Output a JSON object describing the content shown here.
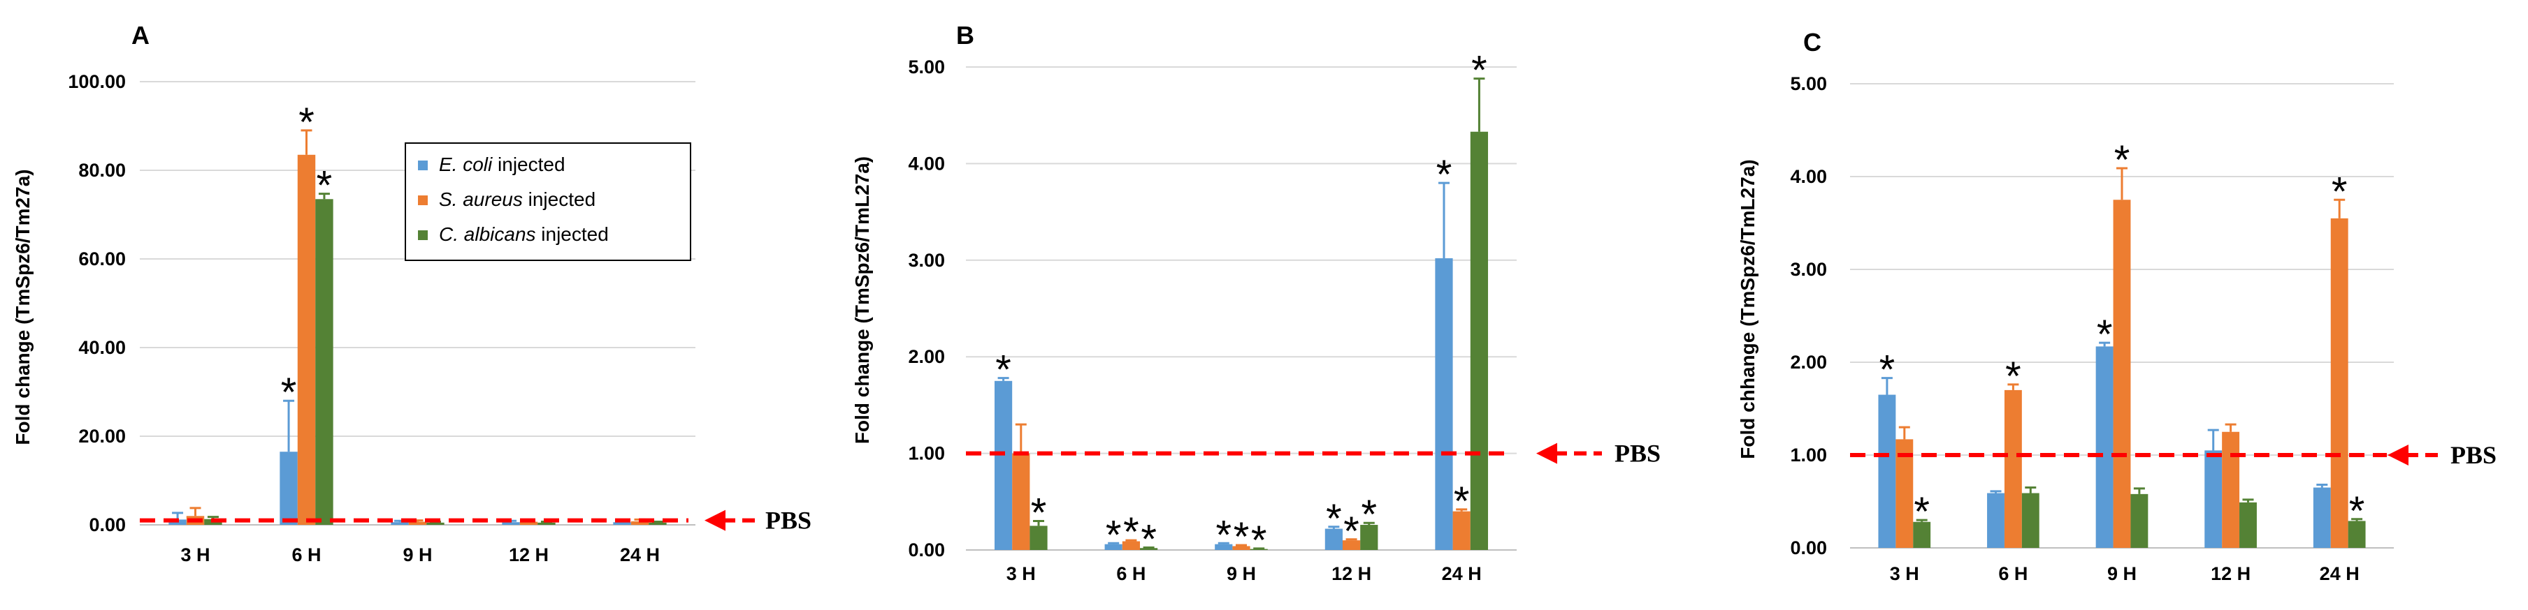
{
  "chart_data": [
    {
      "panel": "A",
      "type": "bar",
      "ylabel": "Fold change (TmSpz6/Tm27a)",
      "ylim": [
        0,
        100
      ],
      "yticks": [
        "0.00",
        "20.00",
        "40.00",
        "60.00",
        "80.00",
        "100.00"
      ],
      "categories": [
        "3 H",
        "6 H",
        "9 H",
        "12 H",
        "24 H"
      ],
      "series": [
        {
          "name": "E. coli injected",
          "values": [
            1.2,
            16.5,
            0.6,
            0.6,
            0.6
          ],
          "errors": [
            1.5,
            11.5,
            0.3,
            0.3,
            0.3
          ],
          "star": [
            false,
            true,
            false,
            false,
            false
          ]
        },
        {
          "name": "S. aureus injected",
          "values": [
            2.0,
            83.5,
            0.7,
            0.7,
            0.8
          ],
          "errors": [
            1.8,
            5.5,
            0.3,
            0.3,
            0.4
          ],
          "star": [
            false,
            true,
            false,
            false,
            false
          ]
        },
        {
          "name": "C. albicans injected",
          "values": [
            1.3,
            73.5,
            0.5,
            0.5,
            0.5
          ],
          "errors": [
            0.5,
            1.2,
            0.2,
            0.2,
            0.2
          ],
          "star": [
            false,
            true,
            false,
            false,
            false
          ]
        }
      ],
      "legend": {
        "position": "top-right",
        "entries": [
          {
            "italic": "E. coli",
            "rest": " injected"
          },
          {
            "italic": "S. aureus",
            "rest": " injected"
          },
          {
            "italic": "C. albicans",
            "rest": " injected"
          }
        ]
      },
      "baseline": 1.0,
      "baseline_label": "PBS",
      "grid": true
    },
    {
      "panel": "B",
      "type": "bar",
      "ylabel": "Fold change (TmSpz6/TmL27a)",
      "ylim": [
        0,
        5
      ],
      "yticks": [
        "0.00",
        "1.00",
        "2.00",
        "3.00",
        "4.00",
        "5.00"
      ],
      "categories": [
        "3 H",
        "6 H",
        "9 H",
        "12 H",
        "24 H"
      ],
      "series": [
        {
          "name": "E. coli injected",
          "values": [
            1.75,
            0.06,
            0.06,
            0.22,
            3.02
          ],
          "errors": [
            0.03,
            0.01,
            0.01,
            0.02,
            0.78
          ],
          "star": [
            true,
            true,
            true,
            true,
            true
          ]
        },
        {
          "name": "S. aureus injected",
          "values": [
            1.0,
            0.09,
            0.04,
            0.1,
            0.4
          ],
          "errors": [
            0.3,
            0.01,
            0.01,
            0.01,
            0.02
          ],
          "star": [
            false,
            true,
            true,
            true,
            true
          ]
        },
        {
          "name": "C. albicans injected",
          "values": [
            0.25,
            0.02,
            0.01,
            0.26,
            4.33
          ],
          "errors": [
            0.05,
            0.005,
            0.005,
            0.02,
            0.55
          ],
          "star": [
            true,
            true,
            true,
            true,
            true
          ]
        }
      ],
      "baseline": 1.0,
      "baseline_label": "PBS",
      "grid": true
    },
    {
      "panel": "C",
      "type": "bar",
      "ylabel": "Fold chhange (TmSpz6/TmL27a)",
      "ylim": [
        0,
        5
      ],
      "yticks": [
        "0.00",
        "1.00",
        "2.00",
        "3.00",
        "4.00",
        "5.00"
      ],
      "categories": [
        "3 H",
        "6 H",
        "9 H",
        "12 H",
        "24 H"
      ],
      "series": [
        {
          "name": "E. coli injected",
          "values": [
            1.65,
            0.59,
            2.17,
            1.05,
            0.65
          ],
          "errors": [
            0.18,
            0.02,
            0.04,
            0.22,
            0.03
          ],
          "star": [
            true,
            false,
            true,
            false,
            false
          ]
        },
        {
          "name": "S. aureus injected",
          "values": [
            1.17,
            1.7,
            3.75,
            1.25,
            3.55
          ],
          "errors": [
            0.13,
            0.06,
            0.34,
            0.08,
            0.2
          ],
          "star": [
            false,
            true,
            true,
            false,
            true
          ]
        },
        {
          "name": "C. albicans injected",
          "values": [
            0.28,
            0.59,
            0.58,
            0.49,
            0.29
          ],
          "errors": [
            0.02,
            0.06,
            0.06,
            0.03,
            0.02
          ],
          "star": [
            true,
            false,
            false,
            false,
            true
          ]
        }
      ],
      "baseline": 1.0,
      "baseline_label": "PBS",
      "grid": true
    }
  ],
  "colors": {
    "E. coli injected": "#5b9bd5",
    "S. aureus injected": "#ed7d31",
    "C. albicans injected": "#548235",
    "baseline": "#ff0000",
    "grid": "#d9d9d9",
    "axis": "#000000"
  },
  "star_symbol": "*"
}
